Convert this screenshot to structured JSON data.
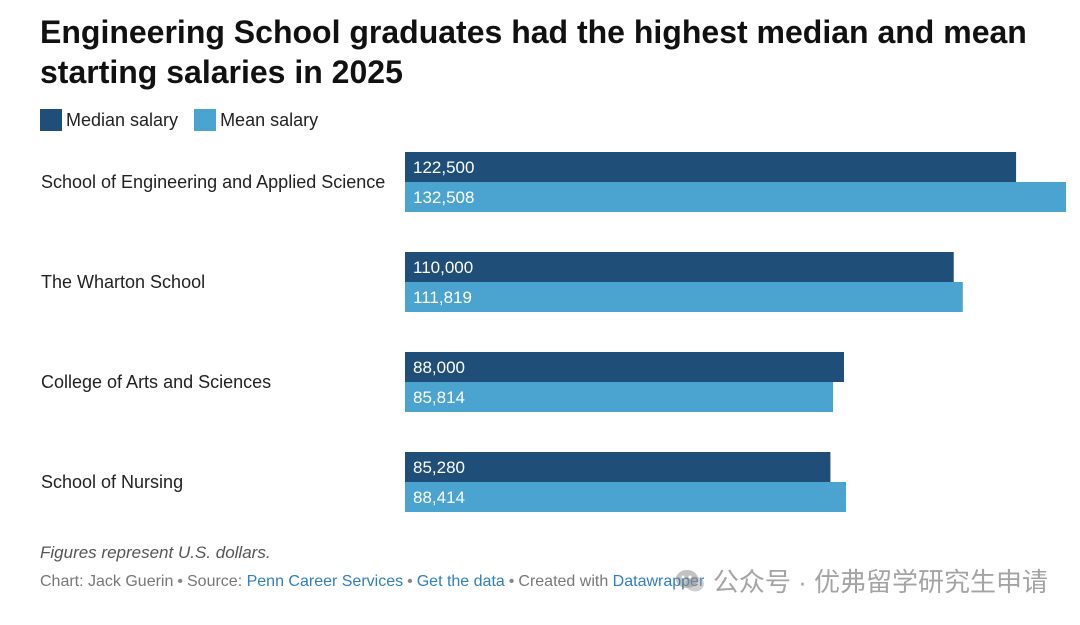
{
  "page": {
    "title": "Engineering School graduates had the highest median and mean starting salaries in 2025",
    "note": "Figures represent U.S. dollars.",
    "footer": {
      "chart_by": "Chart: Jack Guerin",
      "source_prefix": "Source:",
      "source_link": "Penn Career Services",
      "data_link": "Get the data",
      "created_prefix": "Created with",
      "created_link": "Datawrapper"
    },
    "watermark": "公众号 · 优弗留学研究生申请"
  },
  "colors": {
    "median": "#1f4e79",
    "mean": "#4ba3d0",
    "bar_label": "#ffffff",
    "category_label": "#222222"
  },
  "chart_data": {
    "type": "bar",
    "orientation": "horizontal",
    "title": "Engineering School graduates had the highest median and mean starting salaries in 2025",
    "legend_position": "top-left",
    "grid": false,
    "categories": [
      "School of Engineering and Applied Science",
      "The Wharton School",
      "College of Arts and Sciences",
      "School of Nursing"
    ],
    "series": [
      {
        "name": "Median salary",
        "values": [
          122500,
          110000,
          88000,
          85280
        ],
        "labels": [
          "122,500",
          "110,000",
          "88,000",
          "85,280"
        ]
      },
      {
        "name": "Mean salary",
        "values": [
          132508,
          111819,
          85814,
          88414
        ],
        "labels": [
          "132,508",
          "111,819",
          "85,814",
          "88,414"
        ]
      }
    ],
    "xlim": [
      0,
      132508
    ]
  }
}
